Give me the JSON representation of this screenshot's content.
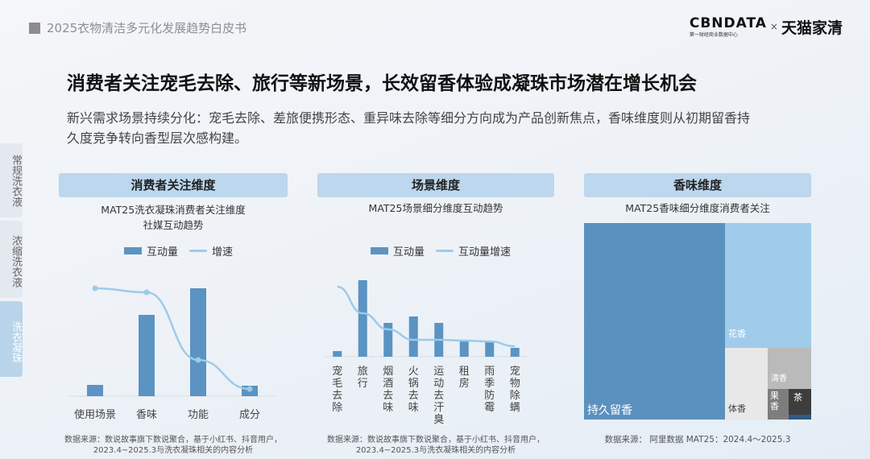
{
  "header": {
    "report_title": "2025衣物清洁多元化发展趋势白皮书",
    "logo_cbndata": "CBNDATA",
    "logo_cbndata_sub": "第一财经商业数据中心",
    "logo_x": "×",
    "logo_tmall": "天猫家清"
  },
  "title": "消费者关注宠毛去除、旅行等新场景，长效留香体验成凝珠市场潜在增长机会",
  "description": "新兴需求场景持续分化：宠毛去除、差旅便携形态、重异味去除等细分方向成为产品创新焦点，香味维度则从初期留香持久度竞争转向香型层次感构建。",
  "sidebar": [
    {
      "label": "常规洗衣液",
      "active": false
    },
    {
      "label": "浓缩洗衣液",
      "active": false
    },
    {
      "label": "洗衣凝珠",
      "active": true
    }
  ],
  "panels": [
    {
      "header": "消费者关注维度",
      "subtitle_1": "MAT25洗衣凝珠消费者关注维度",
      "subtitle_2": "社媒互动趋势",
      "source_1": "数据来源：数说故事旗下数说聚合，基于小红书、抖音用户，",
      "source_2": "2023.4~2025.3与洗衣凝珠相关的内容分析"
    },
    {
      "header": "场景维度",
      "subtitle_1": "MAT25场景细分维度互动趋势",
      "source_1": "数据来源：数说故事旗下数说聚合，基于小红书、抖音用户，",
      "source_2": "2023.4~2025.3与洗衣凝珠相关的内容分析"
    },
    {
      "header": "香味维度",
      "subtitle_1": "MAT25香味细分维度消费者关注",
      "source_1": "数据来源： 阿里数据 MAT25：2024.4～2025.3"
    }
  ],
  "chart_data": [
    {
      "type": "bar",
      "categories": [
        "使用场景",
        "香味",
        "功能",
        "成分"
      ],
      "series": [
        {
          "name": "互动量",
          "type": "bar",
          "values": [
            14,
            101,
            134,
            13
          ]
        },
        {
          "name": "增速",
          "type": "line",
          "values": [
            134,
            129,
            45,
            9
          ]
        }
      ],
      "grid": false,
      "legend": "top",
      "bar_color": "#5b93c2",
      "line_color": "#9ccbe9"
    },
    {
      "type": "bar",
      "categories": [
        "宠毛去除",
        "旅行",
        "烟酒去味",
        "火锅去味",
        "运动去汗臭",
        "租房",
        "雨季防霉",
        "宠物除螨"
      ],
      "series": [
        {
          "name": "互动量",
          "type": "bar",
          "values": [
            7,
            95,
            42,
            50,
            42,
            19,
            19,
            11
          ]
        },
        {
          "name": "互动量增速",
          "type": "line",
          "values": [
            87,
            54,
            34,
            21,
            21,
            20,
            19,
            13
          ]
        }
      ],
      "grid": false,
      "legend": "top",
      "bar_color": "#5b93c2",
      "line_color": "#9ccbe9"
    },
    {
      "type": "treemap",
      "items": [
        {
          "label": "持久留香",
          "color": "#5a91bf"
        },
        {
          "label": "花香",
          "color": "#a1cbea"
        },
        {
          "label": "体香",
          "color": "#e8e8e8"
        },
        {
          "label": "清香",
          "color": "#bababa"
        },
        {
          "label": "果香",
          "color": "#7d7d7d"
        },
        {
          "label": "茶",
          "color": "#3d3d3d"
        },
        {
          "label": "",
          "color": "#2d5a85"
        }
      ]
    }
  ]
}
